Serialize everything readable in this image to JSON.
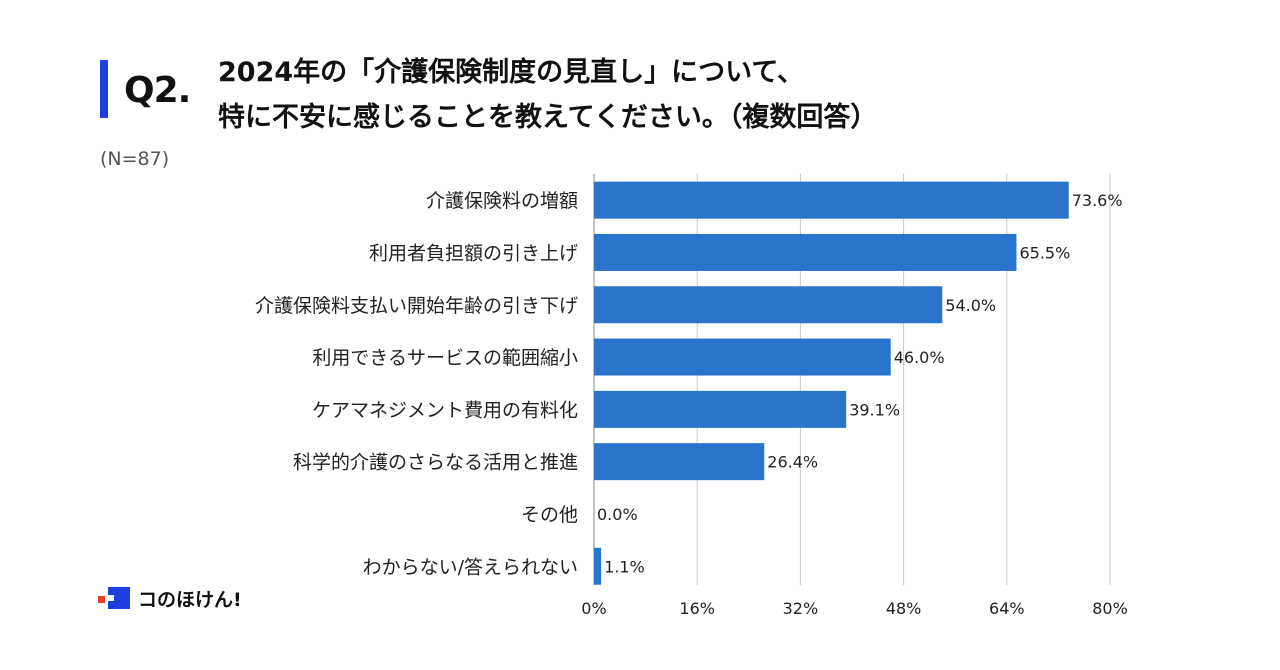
{
  "header": {
    "q_label": "Q2.",
    "title_line1": "2024年の「介護保険制度の見直し」について、",
    "title_line2": "特に不安に感じることを教えてください。（複数回答）",
    "n_label": "(N=87)"
  },
  "logo": {
    "text": "コのほけん!",
    "colors": {
      "blue": "#1e3fe0",
      "red": "#e8412d"
    }
  },
  "chart_data": {
    "type": "bar",
    "orientation": "horizontal",
    "categories": [
      "介護保険料の増額",
      "利用者負担額の引き上げ",
      "介護保険料支払い開始年齢の引き下げ",
      "利用できるサービスの範囲縮小",
      "ケアマネジメント費用の有料化",
      "科学的介護のさらなる活用と推進",
      "その他",
      "わからない/答えられない"
    ],
    "values": [
      73.6,
      65.5,
      54.0,
      46.0,
      39.1,
      26.4,
      0.0,
      1.1
    ],
    "value_labels": [
      "73.6%",
      "65.5%",
      "54.0%",
      "46.0%",
      "39.1%",
      "26.4%",
      "0.0%",
      "1.1%"
    ],
    "xlim": [
      0,
      80
    ],
    "xticks": [
      0,
      16,
      32,
      48,
      64,
      80
    ],
    "xtick_labels": [
      "0%",
      "16%",
      "32%",
      "48%",
      "64%",
      "80%"
    ],
    "grid": true,
    "bar_color": "#2b74cc",
    "grid_color": "#c8c8c8"
  }
}
